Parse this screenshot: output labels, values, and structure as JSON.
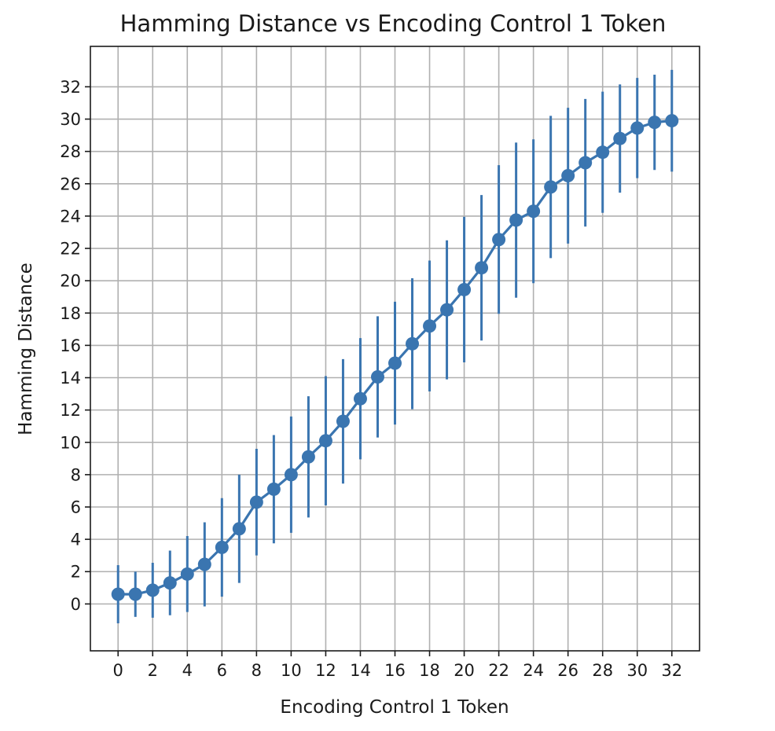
{
  "chart_data": {
    "type": "line",
    "title": "Hamming Distance vs Encoding Control 1 Token",
    "xlabel": "Encoding Control 1 Token",
    "ylabel": "Hamming Distance",
    "xlim": [
      -1.6,
      33.6
    ],
    "ylim": [
      -2.9,
      34.5
    ],
    "xticks": [
      0,
      2,
      4,
      6,
      8,
      10,
      12,
      14,
      16,
      18,
      20,
      22,
      24,
      26,
      28,
      30,
      32
    ],
    "xtick_labels": [
      "0",
      "2",
      "4",
      "6",
      "8",
      "10",
      "12",
      "14",
      "16",
      "18",
      "20",
      "22",
      "24",
      "26",
      "28",
      "30",
      "32"
    ],
    "yticks": [
      0,
      2,
      4,
      6,
      8,
      10,
      12,
      14,
      16,
      18,
      20,
      22,
      24,
      26,
      28,
      30,
      32
    ],
    "ytick_labels": [
      "0",
      "2",
      "4",
      "6",
      "8",
      "10",
      "12",
      "14",
      "16",
      "18",
      "20",
      "22",
      "24",
      "26",
      "28",
      "30",
      "32"
    ],
    "grid": true,
    "error_bars": true,
    "color": "#3a75b0",
    "x": [
      0,
      1,
      2,
      3,
      4,
      5,
      6,
      7,
      8,
      9,
      10,
      11,
      12,
      13,
      14,
      15,
      16,
      17,
      18,
      19,
      20,
      21,
      22,
      23,
      24,
      25,
      26,
      27,
      28,
      29,
      30,
      31,
      32
    ],
    "y": [
      0.6,
      0.6,
      0.85,
      1.3,
      1.85,
      2.45,
      3.5,
      4.65,
      6.3,
      7.1,
      8.0,
      9.1,
      10.1,
      11.3,
      12.7,
      14.05,
      14.9,
      16.1,
      17.2,
      18.2,
      19.45,
      20.8,
      22.55,
      23.75,
      24.3,
      25.8,
      26.5,
      27.3,
      27.95,
      28.8,
      29.45,
      29.8,
      29.9
    ],
    "yerr": [
      1.8,
      1.4,
      1.7,
      2.0,
      2.35,
      2.6,
      3.05,
      3.35,
      3.3,
      3.35,
      3.6,
      3.75,
      4.0,
      3.85,
      3.75,
      3.75,
      3.8,
      4.05,
      4.05,
      4.3,
      4.5,
      4.5,
      4.6,
      4.8,
      4.45,
      4.4,
      4.2,
      3.95,
      3.75,
      3.35,
      3.1,
      2.95,
      3.15
    ]
  }
}
